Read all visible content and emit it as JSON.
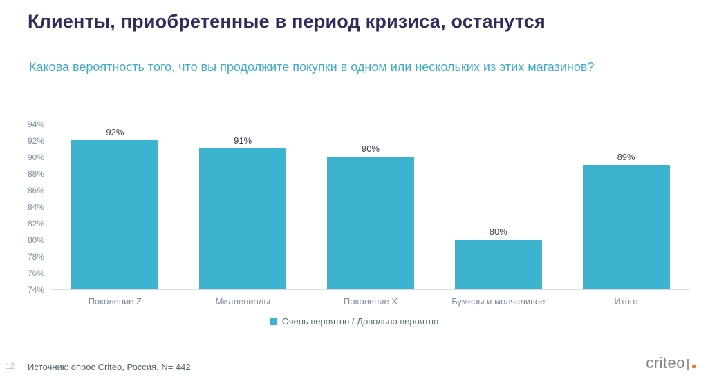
{
  "slide": {
    "title": "Клиенты, приобретенные в период кризиса, останутся",
    "subtitle": "Какова вероятность того, что вы продолжите покупки в одном или нескольких из этих магазинов?",
    "page_number": "12",
    "source": "Источник: опрос Criteo, Россия, N= 442",
    "logo_text": "criteo"
  },
  "colors": {
    "bar": "#3cb4d0",
    "title": "#2d2d5e",
    "subtitle": "#3dacc8",
    "logo_dot": "#f47b20"
  },
  "chart_data": {
    "type": "bar",
    "title": "",
    "xlabel": "",
    "ylabel": "",
    "categories": [
      "Поколение Z",
      "Миллениалы",
      "Поколение X",
      "Бумеры и молчаливое",
      "Итого"
    ],
    "values": [
      92,
      91,
      90,
      80,
      89
    ],
    "value_labels": [
      "92%",
      "91%",
      "90%",
      "80%",
      "89%"
    ],
    "ylim": [
      74,
      94
    ],
    "ytick_step": 2,
    "ytick_labels": [
      "94%",
      "92%",
      "90%",
      "88%",
      "86%",
      "84%",
      "82%",
      "80%",
      "78%",
      "76%",
      "74%"
    ],
    "grid": false,
    "legend_position": "bottom",
    "legend": [
      {
        "label": "Очень вероятно / Довольно вероятно",
        "color": "#3cb4d0"
      }
    ],
    "bar_color": "#3cb4d0"
  }
}
